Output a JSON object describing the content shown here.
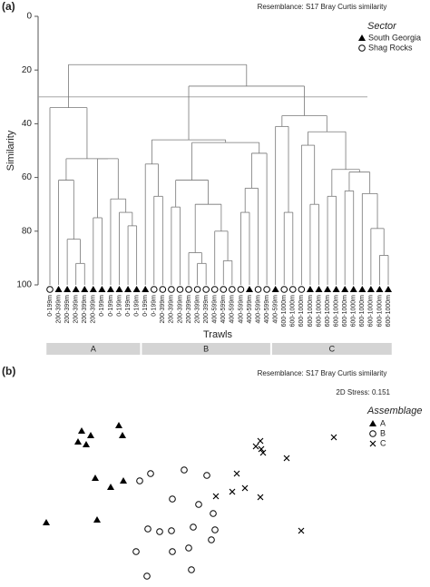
{
  "chart_data": [
    {
      "type": "dendrogram",
      "panel_label": "(a)",
      "subtitle": "Resemblance: S17 Bray Curtis similarity",
      "ylabel": "Similarity",
      "xlabel": "Trawls",
      "ylim": [
        0,
        100
      ],
      "yticks": [
        0,
        20,
        40,
        60,
        80,
        100
      ],
      "cutoff": 30,
      "legend_title": "Sector",
      "legend": [
        {
          "name": "South Georgia",
          "marker": "triangle"
        },
        {
          "name": "Shag Rocks",
          "marker": "circle"
        }
      ],
      "groups": [
        "A",
        "B",
        "C"
      ],
      "group_color": "#d4d4d4",
      "tree": {
        "h": 18,
        "c": [
          {
            "h": 34,
            "c": [
              {
                "label": "0-199m",
                "marker": "circle"
              },
              {
                "h": 53,
                "c": [
                  {
                    "h": 61,
                    "c": [
                      {
                        "label": "200-399m",
                        "marker": "triangle"
                      },
                      {
                        "h": 83,
                        "c": [
                          {
                            "label": "200-399m",
                            "marker": "triangle"
                          },
                          {
                            "h": 92,
                            "c": [
                              {
                                "label": "200-399m",
                                "marker": "triangle"
                              },
                              {
                                "label": "200-399m",
                                "marker": "triangle"
                              }
                            ]
                          }
                        ]
                      }
                    ]
                  },
                  {
                    "h": 53,
                    "c": [
                      {
                        "h": 75,
                        "c": [
                          {
                            "label": "200-399m",
                            "marker": "triangle"
                          },
                          {
                            "label": "0-199m",
                            "marker": "triangle"
                          }
                        ]
                      },
                      {
                        "h": 68,
                        "c": [
                          {
                            "label": "0-199m",
                            "marker": "triangle"
                          },
                          {
                            "h": 73,
                            "c": [
                              {
                                "label": "0-199m",
                                "marker": "triangle"
                              },
                              {
                                "h": 78,
                                "c": [
                                  {
                                    "label": "0-199m",
                                    "marker": "triangle"
                                  },
                                  {
                                    "label": "0-199m",
                                    "marker": "triangle"
                                  }
                                ]
                              }
                            ]
                          }
                        ]
                      }
                    ]
                  }
                ]
              }
            ]
          },
          {
            "h": 26,
            "c": [
              {
                "h": 46,
                "c": [
                  {
                    "h": 55,
                    "c": [
                      {
                        "label": "0-199m",
                        "marker": "triangle"
                      },
                      {
                        "h": 67,
                        "c": [
                          {
                            "label": "0-199m",
                            "marker": "circle"
                          },
                          {
                            "label": "200-399m",
                            "marker": "circle"
                          }
                        ]
                      }
                    ]
                  },
                  {
                    "h": 47,
                    "c": [
                      {
                        "h": 61,
                        "c": [
                          {
                            "h": 71,
                            "c": [
                              {
                                "label": "200-399m",
                                "marker": "circle"
                              },
                              {
                                "label": "200-399m",
                                "marker": "circle"
                              }
                            ]
                          },
                          {
                            "h": 70,
                            "c": [
                              {
                                "h": 88,
                                "c": [
                                  {
                                    "label": "200-399m",
                                    "marker": "circle"
                                  },
                                  {
                                    "h": 92,
                                    "c": [
                                      {
                                        "label": "200-399m",
                                        "marker": "circle"
                                      },
                                      {
                                        "label": "200-399m",
                                        "marker": "circle"
                                      }
                                    ]
                                  }
                                ]
                              },
                              {
                                "h": 80,
                                "c": [
                                  {
                                    "label": "400-599m",
                                    "marker": "circle"
                                  },
                                  {
                                    "h": 91,
                                    "c": [
                                      {
                                        "label": "400-599m",
                                        "marker": "circle"
                                      },
                                      {
                                        "label": "400-599m",
                                        "marker": "circle"
                                      }
                                    ]
                                  }
                                ]
                              }
                            ]
                          }
                        ]
                      },
                      {
                        "h": 51,
                        "c": [
                          {
                            "h": 64,
                            "c": [
                              {
                                "h": 73,
                                "c": [
                                  {
                                    "label": "400-599m",
                                    "marker": "circle"
                                  },
                                  {
                                    "label": "400-599m",
                                    "marker": "triangle"
                                  }
                                ]
                              },
                              {
                                "label": "400-599m",
                                "marker": "circle"
                              }
                            ]
                          },
                          {
                            "label": "400-599m",
                            "marker": "circle"
                          }
                        ]
                      }
                    ]
                  }
                ]
              },
              {
                "h": 37,
                "c": [
                  {
                    "h": 41,
                    "c": [
                      {
                        "label": "400-599m",
                        "marker": "triangle"
                      },
                      {
                        "h": 73,
                        "c": [
                          {
                            "label": "600-1000m",
                            "marker": "circle"
                          },
                          {
                            "label": "600-1000m",
                            "marker": "circle"
                          }
                        ]
                      }
                    ]
                  },
                  {
                    "h": 43,
                    "c": [
                      {
                        "h": 48,
                        "c": [
                          {
                            "label": "600-1000m",
                            "marker": "circle"
                          },
                          {
                            "h": 70,
                            "c": [
                              {
                                "label": "600-1000m",
                                "marker": "triangle"
                              },
                              {
                                "label": "600-1000m",
                                "marker": "triangle"
                              }
                            ]
                          }
                        ]
                      },
                      {
                        "h": 57,
                        "c": [
                          {
                            "h": 67,
                            "c": [
                              {
                                "label": "600-1000m",
                                "marker": "triangle"
                              },
                              {
                                "label": "600-1000m",
                                "marker": "triangle"
                              }
                            ]
                          },
                          {
                            "h": 58,
                            "c": [
                              {
                                "h": 65,
                                "c": [
                                  {
                                    "label": "600-1000m",
                                    "marker": "triangle"
                                  },
                                  {
                                    "label": "600-1000m",
                                    "marker": "triangle"
                                  }
                                ]
                              },
                              {
                                "h": 66,
                                "c": [
                                  {
                                    "label": "600-1000m",
                                    "marker": "triangle"
                                  },
                                  {
                                    "h": 79,
                                    "c": [
                                      {
                                        "label": "600-1000m",
                                        "marker": "triangle"
                                      },
                                      {
                                        "h": 89,
                                        "c": [
                                          {
                                            "label": "600-1000m",
                                            "marker": "triangle"
                                          },
                                          {
                                            "label": "600-1000m",
                                            "marker": "triangle"
                                          }
                                        ]
                                      }
                                    ]
                                  }
                                ]
                              }
                            ]
                          }
                        ]
                      }
                    ]
                  }
                ]
              }
            ]
          }
        ]
      }
    },
    {
      "type": "scatter",
      "panel_label": "(b)",
      "subtitle": "Resemblance: S17 Bray Curtis similarity",
      "annotation": "2D Stress: 0.151",
      "legend_title": "Assemblage",
      "xlim": [
        0,
        380
      ],
      "ylim": [
        0,
        200
      ],
      "series": [
        {
          "name": "A",
          "marker": "triangle",
          "x": [
            50,
            60,
            46,
            55,
            91,
            95,
            65,
            82,
            96,
            11,
            67
          ],
          "y": [
            165,
            160,
            153,
            150,
            171,
            160,
            113,
            103,
            110,
            64,
            67
          ]
        },
        {
          "name": "B",
          "marker": "circle",
          "x": [
            114,
            126,
            163,
            188,
            150,
            179,
            195,
            123,
            136,
            149,
            173,
            197,
            110,
            150,
            168,
            122,
            171,
            193
          ],
          "y": [
            110,
            118,
            122,
            116,
            90,
            84,
            74,
            57,
            54,
            55,
            59,
            56,
            32,
            32,
            36,
            5,
            12,
            45
          ]
        },
        {
          "name": "C",
          "marker": "cross",
          "x": [
            247,
            276,
            328,
            242,
            248,
            250,
            221,
            230,
            247,
            198,
            216,
            292
          ],
          "y": [
            154,
            135,
            158,
            148,
            145,
            141,
            118,
            102,
            92,
            93,
            98,
            55
          ]
        }
      ]
    }
  ]
}
